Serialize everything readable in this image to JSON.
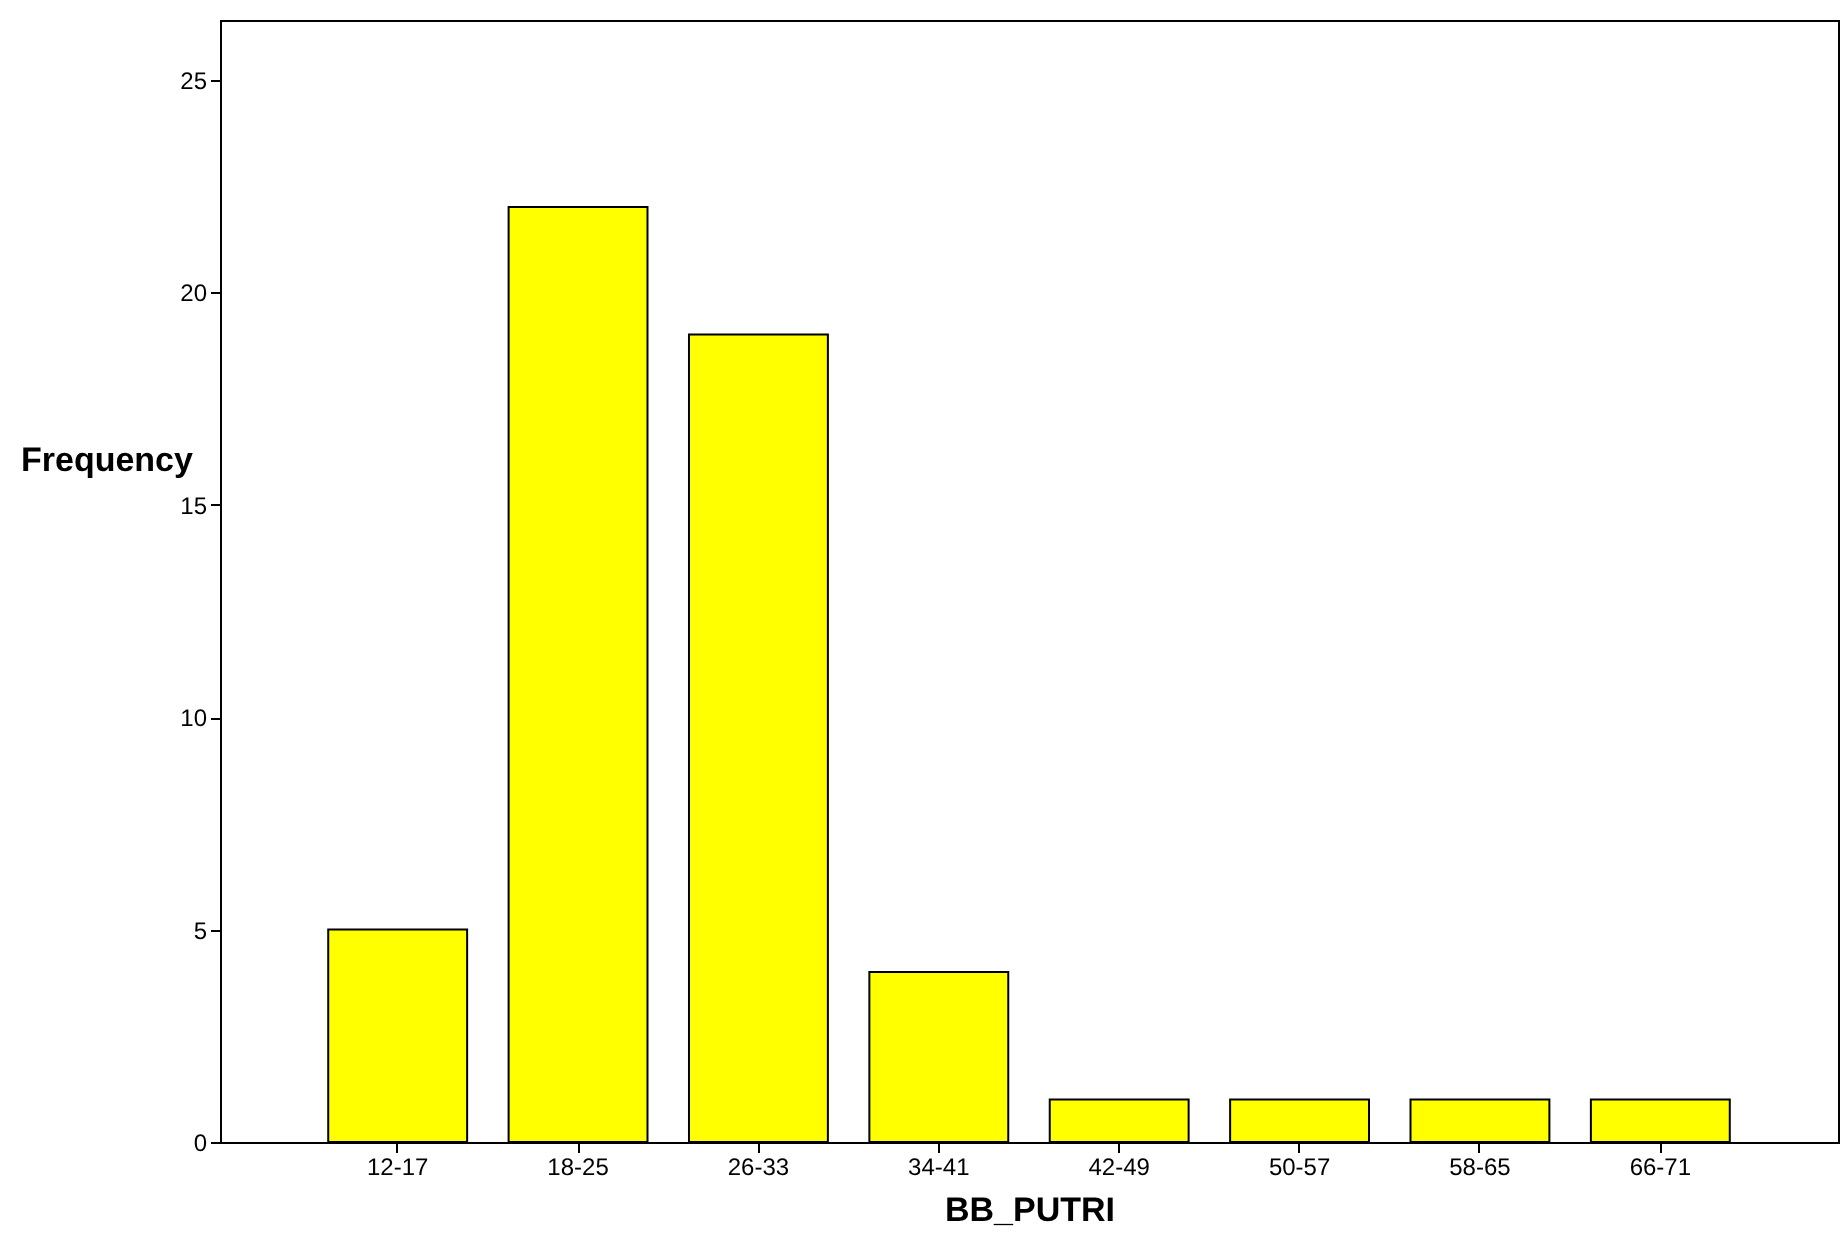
{
  "chart_data": {
    "type": "bar",
    "xlabel": "BB_PUTRI",
    "ylabel": "Frequency",
    "categories": [
      "12-17",
      "18-25",
      "26-33",
      "34-41",
      "42-49",
      "50-57",
      "58-65",
      "66-71"
    ],
    "values": [
      5,
      22,
      19,
      4,
      1,
      1,
      1,
      1
    ],
    "color": "#ffff00",
    "ylim": [
      0,
      26.4
    ],
    "yticks": [
      0,
      5,
      10,
      15,
      20,
      25
    ],
    "grid": false
  }
}
